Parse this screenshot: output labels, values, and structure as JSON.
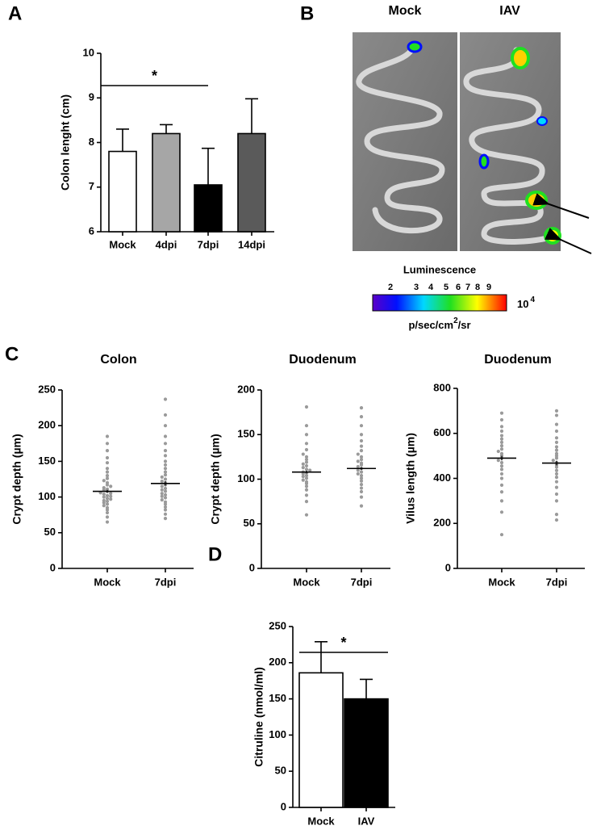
{
  "panel_labels": [
    "A",
    "B",
    "C",
    "D"
  ],
  "imaging": {
    "columns": [
      "Mock",
      "IAV"
    ],
    "colorbar_title": "Luminescence",
    "colorbar_ticks": [
      "2",
      "3",
      "4",
      "5",
      "6",
      "7",
      "8",
      "9"
    ],
    "colorbar_multiplier": "10",
    "colorbar_exponent": "4",
    "unit_start": "p/sec/cm",
    "unit_power": "2",
    "unit_end": "/sr"
  },
  "chart_data": [
    {
      "type": "bar",
      "ylabel": "Colon lenght (cm)",
      "categories": [
        "Mock",
        "4dpi",
        "7dpi",
        "14dpi"
      ],
      "values": [
        7.8,
        8.2,
        7.05,
        8.2
      ],
      "errors": [
        0.5,
        0.2,
        0.82,
        0.78
      ],
      "colors": [
        "#ffffff",
        "#a6a6a6",
        "#000000",
        "#5a5a5a"
      ],
      "ylim": [
        6,
        10
      ],
      "yticks": [
        6,
        7,
        8,
        9,
        10
      ],
      "significance": {
        "label": "*",
        "between": [
          "Mock",
          "7dpi"
        ]
      }
    },
    {
      "type": "dotplot",
      "title": "Colon",
      "ylabel": "Crypt depth (µm)",
      "categories": [
        "Mock",
        "7dpi"
      ],
      "color": "#9a9a9a",
      "values": [
        [
          65,
          72,
          78,
          82,
          85,
          88,
          90,
          92,
          94,
          95,
          97,
          98,
          100,
          101,
          102,
          104,
          105,
          106,
          108,
          110,
          111,
          113,
          115,
          117,
          120,
          123,
          126,
          130,
          135,
          140,
          148,
          155,
          165,
          175,
          185
        ],
        [
          70,
          76,
          82,
          86,
          90,
          93,
          96,
          99,
          101,
          103,
          105,
          108,
          110,
          112,
          115,
          117,
          120,
          122,
          125,
          128,
          131,
          135,
          140,
          145,
          150,
          158,
          165,
          175,
          185,
          200,
          215,
          237
        ]
      ],
      "means": [
        108,
        119
      ],
      "sems": [
        2,
        3
      ],
      "ylim": [
        0,
        250
      ],
      "yticks": [
        0,
        50,
        100,
        150,
        200,
        250
      ]
    },
    {
      "type": "dotplot",
      "title": "Duodenum",
      "ylabel": "Crypt depth (µm)",
      "categories": [
        "Mock",
        "7dpi"
      ],
      "color": "#9a9a9a",
      "values": [
        [
          60,
          75,
          82,
          88,
          92,
          95,
          97,
          99,
          101,
          103,
          104,
          106,
          107,
          108,
          110,
          111,
          113,
          115,
          117,
          119,
          122,
          125,
          128,
          133,
          140,
          150,
          160,
          181
        ],
        [
          70,
          80,
          86,
          90,
          94,
          98,
          101,
          104,
          106,
          108,
          110,
          112,
          114,
          116,
          118,
          120,
          122,
          125,
          128,
          132,
          137,
          143,
          150,
          160,
          170,
          180
        ]
      ],
      "means": [
        108,
        112
      ],
      "sems": [
        1.5,
        1.5
      ],
      "ylim": [
        0,
        200
      ],
      "yticks": [
        0,
        50,
        100,
        150,
        200
      ]
    },
    {
      "type": "dotplot",
      "title": "Duodenum",
      "ylabel": "Vilus length (µm)",
      "categories": [
        "Mock",
        "7dpi"
      ],
      "color": "#9a9a9a",
      "values": [
        [
          150,
          250,
          300,
          340,
          370,
          400,
          420,
          440,
          455,
          470,
          480,
          490,
          500,
          510,
          520,
          530,
          545,
          560,
          575,
          590,
          610,
          630,
          660,
          690
        ],
        [
          215,
          240,
          300,
          330,
          360,
          385,
          405,
          420,
          435,
          450,
          460,
          470,
          480,
          490,
          500,
          510,
          525,
          540,
          560,
          580,
          610,
          640,
          680,
          700
        ]
      ],
      "means": [
        490,
        468
      ],
      "sems": [
        10,
        10
      ],
      "ylim": [
        0,
        800
      ],
      "yticks": [
        0,
        200,
        400,
        600,
        800
      ]
    },
    {
      "type": "bar",
      "ylabel": "Citruline (nmol/ml)",
      "categories": [
        "Mock",
        "IAV"
      ],
      "values": [
        186,
        150
      ],
      "errors": [
        43,
        27
      ],
      "colors": [
        "#ffffff",
        "#000000"
      ],
      "ylim": [
        0,
        250
      ],
      "yticks": [
        0,
        50,
        100,
        150,
        200,
        250
      ],
      "significance": {
        "label": "*",
        "between": [
          "Mock",
          "IAV"
        ]
      }
    }
  ]
}
